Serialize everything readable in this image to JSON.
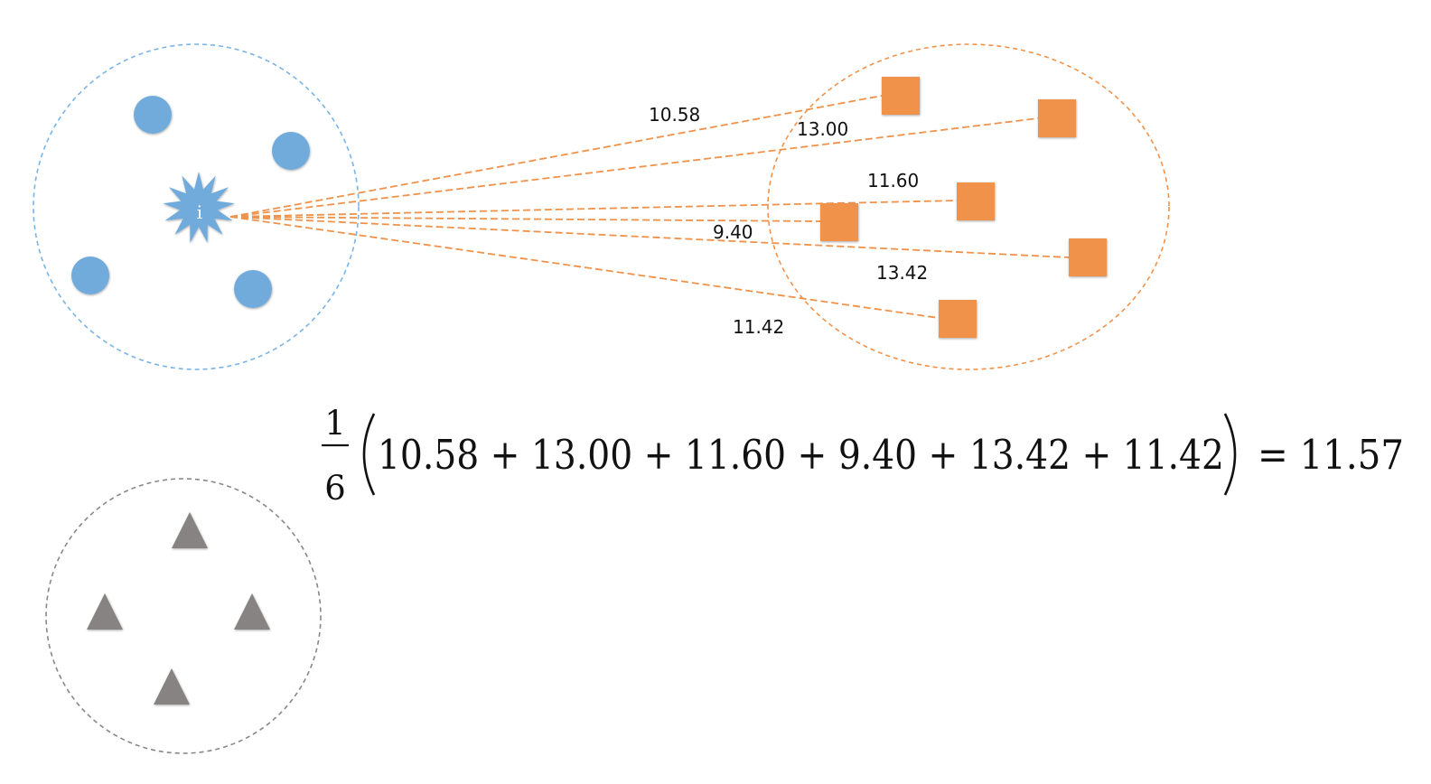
{
  "colors": {
    "blue": "#6fabdc",
    "orange": "#f0924a",
    "gray": "#868382",
    "blue_boundary": "#79b4e6",
    "orange_boundary": "#f0924a",
    "gray_boundary": "#888888",
    "dist_line": "#f0924a",
    "text": "#111111"
  },
  "clusters": {
    "blue": {
      "boundary_style": "dashed",
      "member_shape": "circle",
      "member_count": 4,
      "focal_point": {
        "shape": "starburst",
        "label": "i"
      }
    },
    "orange": {
      "boundary_style": "dashed",
      "member_shape": "square",
      "member_count": 6
    },
    "gray": {
      "boundary_style": "dashed",
      "member_shape": "triangle",
      "member_count": 4
    }
  },
  "distances": [
    {
      "label": "10.58",
      "value": 10.58
    },
    {
      "label": "13.00",
      "value": 13.0
    },
    {
      "label": "11.60",
      "value": 11.6
    },
    {
      "label": "9.40",
      "value": 9.4
    },
    {
      "label": "13.42",
      "value": 13.42
    },
    {
      "label": "11.42",
      "value": 11.42
    }
  ],
  "formula": {
    "numerator": "1",
    "denominator": "6",
    "expression": "10.58 + 13.00 + 11.60 + 9.40 + 13.42 + 11.42",
    "result": "= 11.57"
  }
}
